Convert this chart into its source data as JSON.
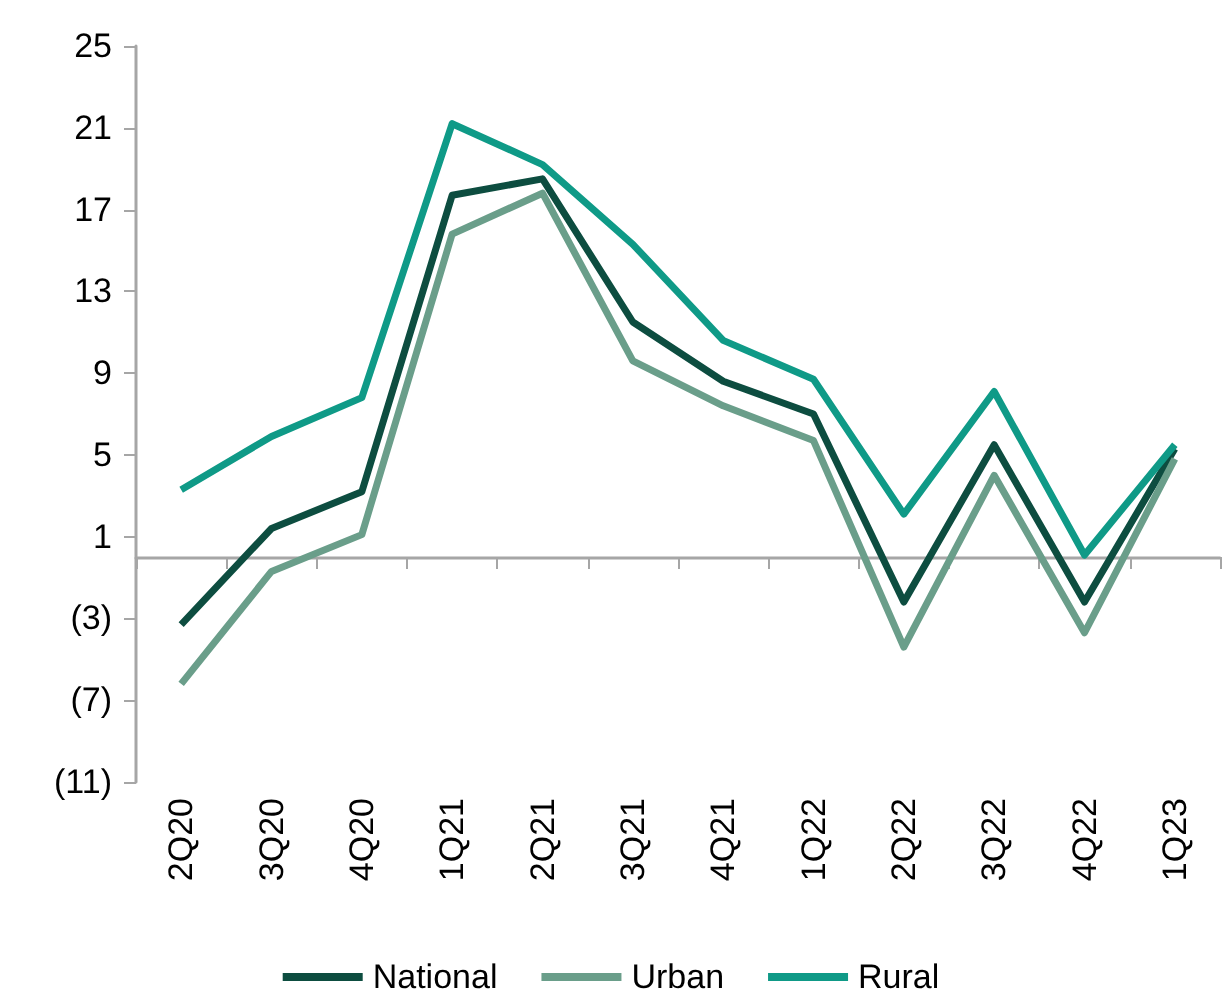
{
  "chart_data": {
    "type": "line",
    "categories": [
      "2Q20",
      "3Q20",
      "4Q20",
      "1Q21",
      "2Q21",
      "3Q21",
      "4Q21",
      "1Q22",
      "2Q22",
      "3Q22",
      "4Q22",
      "1Q23"
    ],
    "series": [
      {
        "name": "National",
        "color": "#0d4d40",
        "values": [
          -3.3,
          1.4,
          3.2,
          17.7,
          18.5,
          11.5,
          8.6,
          7.0,
          -2.2,
          5.5,
          -2.2,
          5.3
        ]
      },
      {
        "name": "Urban",
        "color": "#6a9e8a",
        "values": [
          -6.2,
          -0.7,
          1.1,
          15.8,
          17.8,
          9.6,
          7.4,
          5.7,
          -4.4,
          4.0,
          -3.7,
          4.8
        ]
      },
      {
        "name": "Rural",
        "color": "#0f9a87",
        "values": [
          3.3,
          5.9,
          7.8,
          21.2,
          19.2,
          15.3,
          10.6,
          8.7,
          2.1,
          8.1,
          0.1,
          5.5
        ]
      }
    ],
    "ylim": [
      -11,
      25
    ],
    "yticks": [
      {
        "value": -11,
        "label": "(11)"
      },
      {
        "value": -7,
        "label": "(7)"
      },
      {
        "value": -3,
        "label": "(3)"
      },
      1,
      5,
      9,
      13,
      17,
      21,
      25
    ],
    "grid": false,
    "legend": "bottom",
    "marker": "none",
    "line_style": "solid"
  }
}
